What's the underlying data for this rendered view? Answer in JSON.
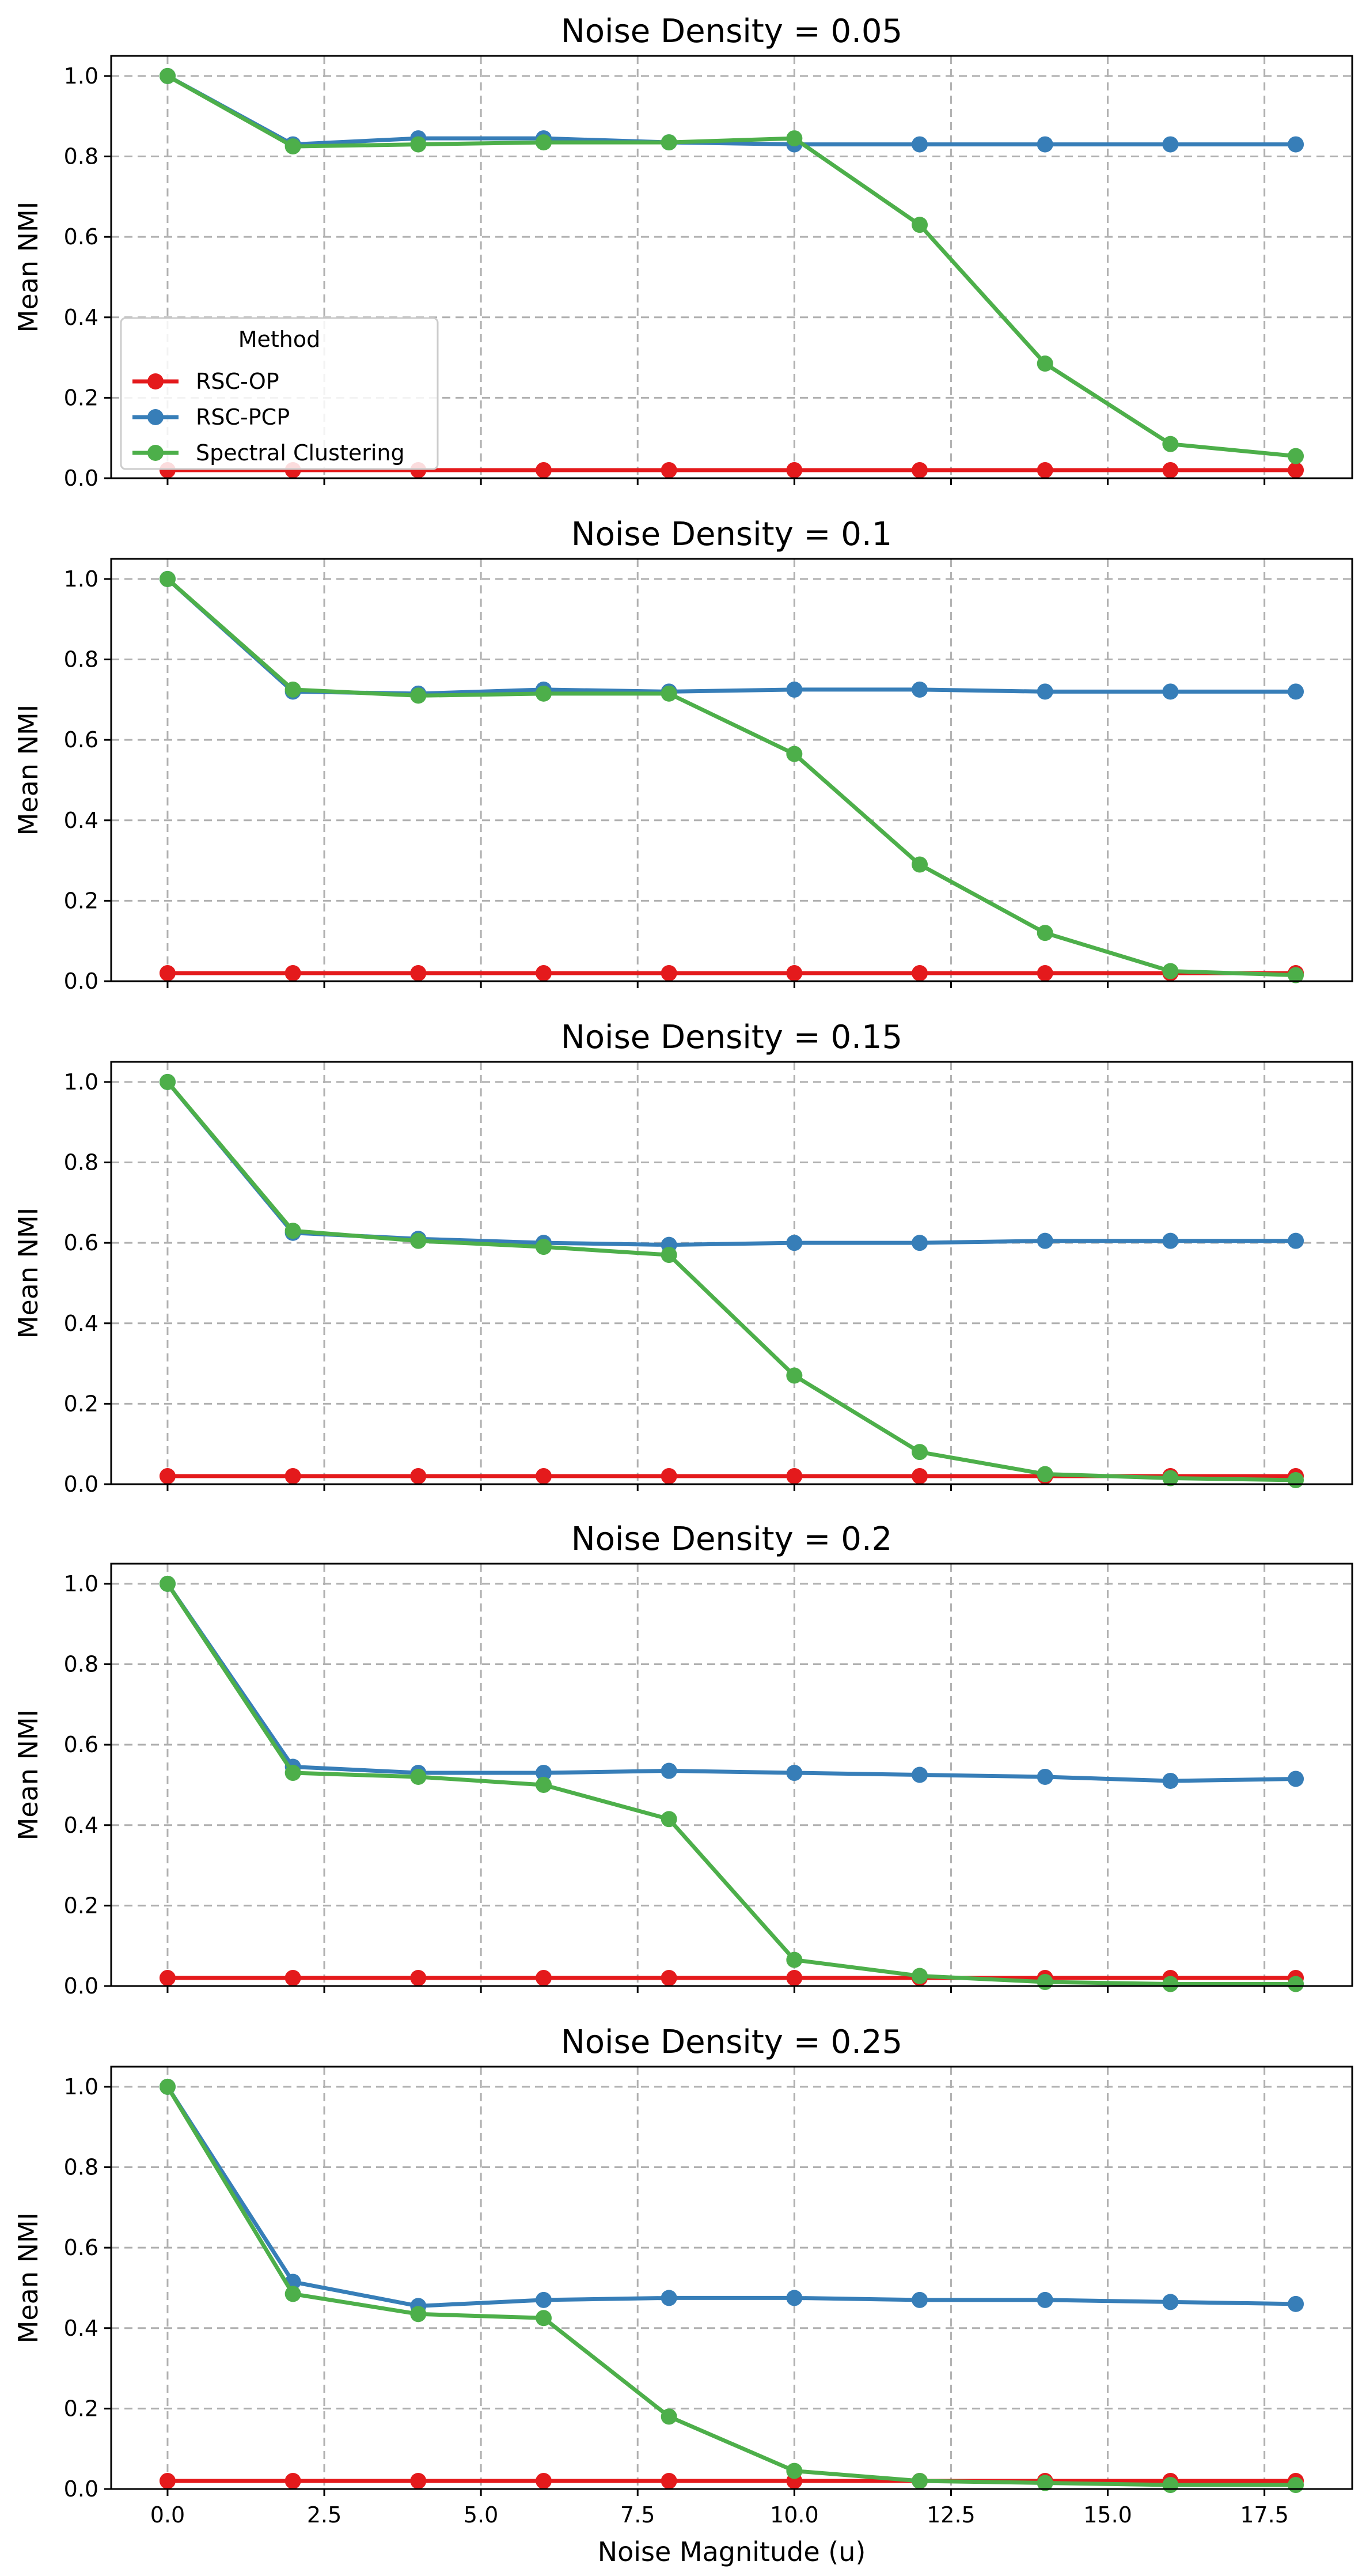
{
  "figure": {
    "xlabel": "Noise Magnitude (u)",
    "ylabel": "Mean NMI",
    "legend": {
      "title": "Method",
      "placement": "lower-left",
      "panel": 0
    },
    "x_ticks": [
      0.0,
      2.5,
      5.0,
      7.5,
      10.0,
      12.5,
      15.0,
      17.5
    ],
    "x_tick_labels": [
      "0.0",
      "2.5",
      "5.0",
      "7.5",
      "10.0",
      "12.5",
      "15.0",
      "17.5"
    ],
    "y_ticks": [
      0.0,
      0.2,
      0.4,
      0.6,
      0.8,
      1.0
    ],
    "y_tick_labels": [
      "0.0",
      "0.2",
      "0.4",
      "0.6",
      "0.8",
      "1.0"
    ],
    "colors": {
      "RSC-OP": "#e41a1c",
      "RSC-PCP": "#377eb8",
      "Spectral Clustering": "#4daf4a"
    }
  },
  "chart_data": [
    {
      "type": "line",
      "title": "Noise Density = 0.05",
      "xlabel": "",
      "ylabel": "Mean NMI",
      "xlim": [
        -0.9,
        18.9
      ],
      "ylim": [
        0,
        1.05
      ],
      "grid": true,
      "x": [
        0,
        2,
        4,
        6,
        8,
        10,
        12,
        14,
        16,
        18
      ],
      "series": [
        {
          "name": "RSC-OP",
          "values": [
            0.02,
            0.02,
            0.02,
            0.02,
            0.02,
            0.02,
            0.02,
            0.02,
            0.02,
            0.02
          ]
        },
        {
          "name": "RSC-PCP",
          "values": [
            1.0,
            0.83,
            0.845,
            0.845,
            0.835,
            0.83,
            0.83,
            0.83,
            0.83,
            0.83
          ]
        },
        {
          "name": "Spectral Clustering",
          "values": [
            1.0,
            0.825,
            0.83,
            0.835,
            0.835,
            0.845,
            0.63,
            0.285,
            0.085,
            0.055
          ]
        }
      ]
    },
    {
      "type": "line",
      "title": "Noise Density = 0.1",
      "xlabel": "",
      "ylabel": "Mean NMI",
      "xlim": [
        -0.9,
        18.9
      ],
      "ylim": [
        0,
        1.05
      ],
      "grid": true,
      "x": [
        0,
        2,
        4,
        6,
        8,
        10,
        12,
        14,
        16,
        18
      ],
      "series": [
        {
          "name": "RSC-OP",
          "values": [
            0.02,
            0.02,
            0.02,
            0.02,
            0.02,
            0.02,
            0.02,
            0.02,
            0.02,
            0.02
          ]
        },
        {
          "name": "RSC-PCP",
          "values": [
            1.0,
            0.72,
            0.715,
            0.725,
            0.72,
            0.725,
            0.725,
            0.72,
            0.72,
            0.72
          ]
        },
        {
          "name": "Spectral Clustering",
          "values": [
            1.0,
            0.725,
            0.71,
            0.715,
            0.715,
            0.565,
            0.29,
            0.12,
            0.025,
            0.015
          ]
        }
      ]
    },
    {
      "type": "line",
      "title": "Noise Density = 0.15",
      "xlabel": "",
      "ylabel": "Mean NMI",
      "xlim": [
        -0.9,
        18.9
      ],
      "ylim": [
        0,
        1.05
      ],
      "grid": true,
      "x": [
        0,
        2,
        4,
        6,
        8,
        10,
        12,
        14,
        16,
        18
      ],
      "series": [
        {
          "name": "RSC-OP",
          "values": [
            0.02,
            0.02,
            0.02,
            0.02,
            0.02,
            0.02,
            0.02,
            0.02,
            0.02,
            0.02
          ]
        },
        {
          "name": "RSC-PCP",
          "values": [
            1.0,
            0.625,
            0.61,
            0.6,
            0.595,
            0.6,
            0.6,
            0.605,
            0.605,
            0.605
          ]
        },
        {
          "name": "Spectral Clustering",
          "values": [
            1.0,
            0.63,
            0.605,
            0.59,
            0.57,
            0.27,
            0.08,
            0.025,
            0.015,
            0.01
          ]
        }
      ]
    },
    {
      "type": "line",
      "title": "Noise Density = 0.2",
      "xlabel": "",
      "ylabel": "Mean NMI",
      "xlim": [
        -0.9,
        18.9
      ],
      "ylim": [
        0,
        1.05
      ],
      "grid": true,
      "x": [
        0,
        2,
        4,
        6,
        8,
        10,
        12,
        14,
        16,
        18
      ],
      "series": [
        {
          "name": "RSC-OP",
          "values": [
            0.02,
            0.02,
            0.02,
            0.02,
            0.02,
            0.02,
            0.02,
            0.02,
            0.02,
            0.02
          ]
        },
        {
          "name": "RSC-PCP",
          "values": [
            1.0,
            0.545,
            0.53,
            0.53,
            0.535,
            0.53,
            0.525,
            0.52,
            0.51,
            0.515
          ]
        },
        {
          "name": "Spectral Clustering",
          "values": [
            1.0,
            0.53,
            0.52,
            0.5,
            0.415,
            0.065,
            0.025,
            0.01,
            0.005,
            0.005
          ]
        }
      ]
    },
    {
      "type": "line",
      "title": "Noise Density = 0.25",
      "xlabel": "Noise Magnitude (u)",
      "ylabel": "Mean NMI",
      "xlim": [
        -0.9,
        18.9
      ],
      "ylim": [
        0,
        1.05
      ],
      "grid": true,
      "x": [
        0,
        2,
        4,
        6,
        8,
        10,
        12,
        14,
        16,
        18
      ],
      "series": [
        {
          "name": "RSC-OP",
          "values": [
            0.02,
            0.02,
            0.02,
            0.02,
            0.02,
            0.02,
            0.02,
            0.02,
            0.02,
            0.02
          ]
        },
        {
          "name": "RSC-PCP",
          "values": [
            1.0,
            0.515,
            0.455,
            0.47,
            0.475,
            0.475,
            0.47,
            0.47,
            0.465,
            0.46
          ]
        },
        {
          "name": "Spectral Clustering",
          "values": [
            1.0,
            0.485,
            0.435,
            0.425,
            0.18,
            0.045,
            0.02,
            0.015,
            0.01,
            0.01
          ]
        }
      ]
    }
  ]
}
